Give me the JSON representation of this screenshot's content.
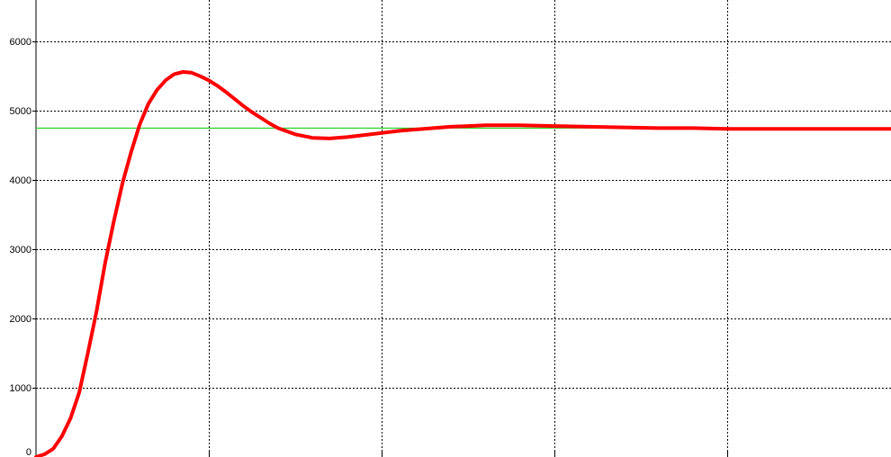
{
  "chart_data": {
    "type": "line",
    "title": "",
    "xlabel": "",
    "ylabel": "",
    "ylim": [
      0,
      6600
    ],
    "xlim": [
      0,
      5
    ],
    "grid": true,
    "yticks": [
      0,
      1000,
      2000,
      3000,
      4000,
      5000,
      6000
    ],
    "ytick_labels": [
      "0",
      "1000",
      "2000",
      "3000",
      "4000",
      "5000",
      "6000"
    ],
    "xticks": [
      1,
      2,
      3,
      4
    ],
    "series": [
      {
        "color": "#ff0000",
        "x": [
          0,
          0.05,
          0.1,
          0.15,
          0.2,
          0.25,
          0.3,
          0.35,
          0.4,
          0.45,
          0.5,
          0.55,
          0.6,
          0.65,
          0.7,
          0.75,
          0.8,
          0.85,
          0.9,
          0.95,
          1.0,
          1.05,
          1.1,
          1.15,
          1.2,
          1.25,
          1.3,
          1.35,
          1.4,
          1.5,
          1.6,
          1.7,
          1.8,
          1.9,
          2.0,
          2.1,
          2.2,
          2.3,
          2.4,
          2.5,
          2.6,
          2.8,
          3.0,
          3.2,
          3.4,
          3.6,
          3.8,
          4.0,
          4.2,
          4.4,
          4.6,
          4.8,
          5.0
        ],
        "values": [
          0,
          40,
          120,
          300,
          560,
          930,
          1500,
          2100,
          2800,
          3400,
          3950,
          4400,
          4800,
          5100,
          5300,
          5440,
          5530,
          5560,
          5550,
          5500,
          5440,
          5360,
          5270,
          5170,
          5070,
          4980,
          4900,
          4820,
          4750,
          4660,
          4610,
          4600,
          4620,
          4650,
          4680,
          4710,
          4730,
          4750,
          4770,
          4780,
          4790,
          4790,
          4780,
          4770,
          4760,
          4750,
          4750,
          4740,
          4740,
          4740,
          4740,
          4740,
          4740
        ]
      },
      {
        "color": "#00cc00",
        "x": [
          0,
          5
        ],
        "values": [
          4750,
          4750
        ]
      }
    ]
  }
}
